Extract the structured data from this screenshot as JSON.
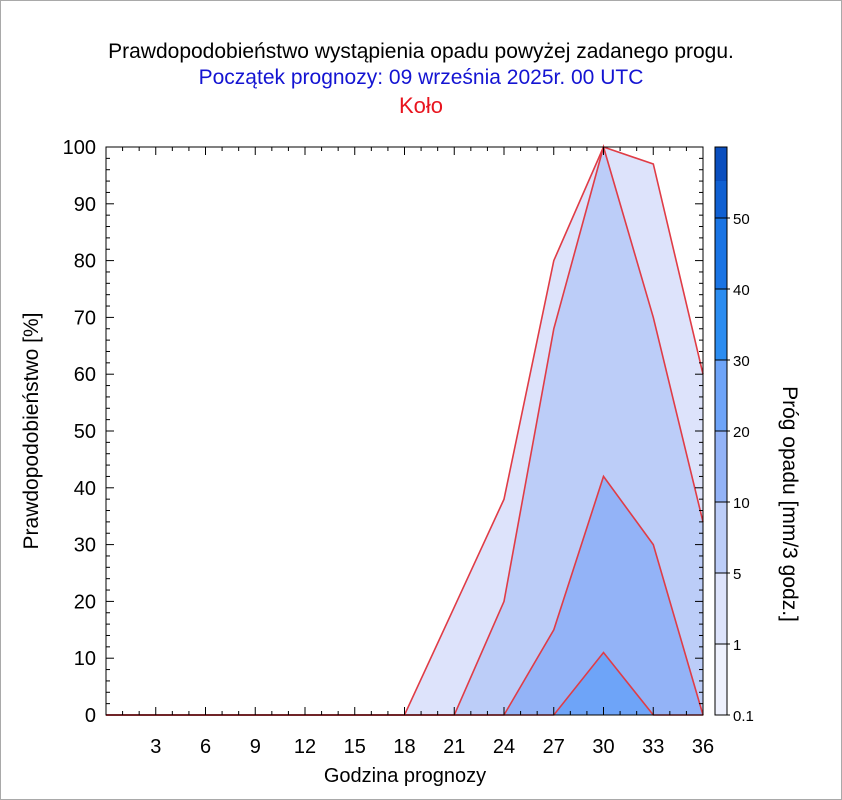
{
  "title": "Prawdopodobieństwo wystąpienia opadu powyżej zadanego progu.",
  "subtitle": "Początek prognozy: 09 września 2025r. 00 UTC",
  "location": "Koło",
  "chart_data": {
    "type": "area",
    "xlabel": "Godzina prognozy",
    "ylabel": "Prawdopodobieństwo [%]",
    "xlim": [
      0,
      36
    ],
    "ylim": [
      0,
      100
    ],
    "xticks": [
      "3",
      "6",
      "9",
      "12",
      "15",
      "18",
      "21",
      "24",
      "27",
      "30",
      "33",
      "36"
    ],
    "yticks": [
      "0",
      "10",
      "20",
      "30",
      "40",
      "50",
      "60",
      "70",
      "80",
      "90",
      "100"
    ],
    "x": [
      0,
      3,
      6,
      9,
      12,
      15,
      18,
      21,
      24,
      27,
      30,
      33,
      36
    ],
    "series": [
      {
        "name": "0.1",
        "color": "#dde3fb",
        "values": [
          0,
          0,
          0,
          0,
          0,
          0,
          0,
          19,
          38,
          80,
          100,
          97,
          60
        ]
      },
      {
        "name": "1",
        "color": "#bccdf8",
        "values": [
          0,
          0,
          0,
          0,
          0,
          0,
          0,
          0,
          20,
          68,
          100,
          70,
          34
        ]
      },
      {
        "name": "5",
        "color": "#93b3f7",
        "values": [
          0,
          0,
          0,
          0,
          0,
          0,
          0,
          0,
          0,
          15,
          42,
          30,
          0
        ]
      },
      {
        "name": "10",
        "color": "#6ea4f8",
        "values": [
          0,
          0,
          0,
          0,
          0,
          0,
          0,
          0,
          0,
          0,
          11,
          0,
          0
        ]
      }
    ],
    "outline_color": "#e03c46",
    "colorbar": {
      "label": "Próg opadu [mm/3 godz.]",
      "ticks": [
        "0.1",
        "1",
        "5",
        "10",
        "20",
        "30",
        "40",
        "50"
      ],
      "colors": [
        "#eef1fd",
        "#dde3fb",
        "#bccdf8",
        "#93b3f7",
        "#6ea4f8",
        "#2b8cf0",
        "#1a74e4",
        "#1060d2",
        "#0a4ebe",
        "#0a40a8"
      ]
    }
  }
}
